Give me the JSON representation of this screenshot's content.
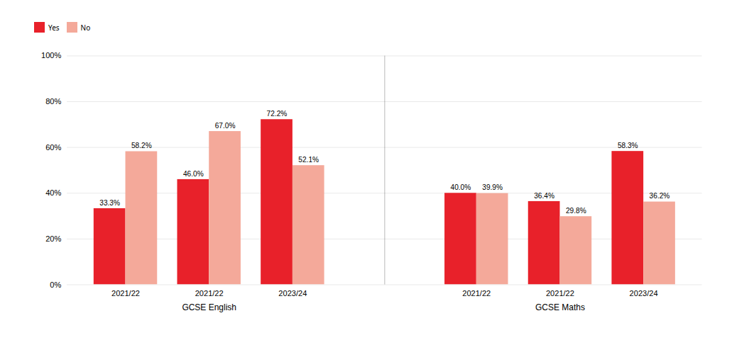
{
  "chart_data": {
    "type": "bar",
    "categories": [
      "2021/22",
      "2021/22",
      "2023/24",
      "2021/22",
      "2021/22",
      "2023/24"
    ],
    "sections": [
      "GCSE English",
      "GCSE English",
      "GCSE English",
      "GCSE Maths",
      "GCSE Maths",
      "GCSE Maths"
    ],
    "series": [
      {
        "name": "Yes",
        "color": "#E8212A",
        "values": [
          33.3,
          46.0,
          72.2,
          40.0,
          36.4,
          58.3
        ],
        "value_labels": [
          "33.3%",
          "46.0%",
          "72.2%",
          "40.0%",
          "36.4%",
          "58.3%"
        ]
      },
      {
        "name": "No",
        "color": "#F4A99A",
        "values": [
          58.2,
          67.0,
          52.1,
          39.9,
          29.8,
          36.2
        ],
        "value_labels": [
          "58.2%",
          "67.0%",
          "52.1%",
          "39.9%",
          "29.8%",
          "36.2%"
        ]
      }
    ],
    "ylim": [
      0,
      100
    ],
    "yticks": [
      {
        "value": 0,
        "label": "0%"
      },
      {
        "value": 20,
        "label": "20%"
      },
      {
        "value": 40,
        "label": "40%"
      },
      {
        "value": 60,
        "label": "60%"
      },
      {
        "value": 80,
        "label": "80%"
      },
      {
        "value": 100,
        "label": "100%"
      }
    ],
    "grid": true,
    "legend": "upper left",
    "data_labels": true
  }
}
